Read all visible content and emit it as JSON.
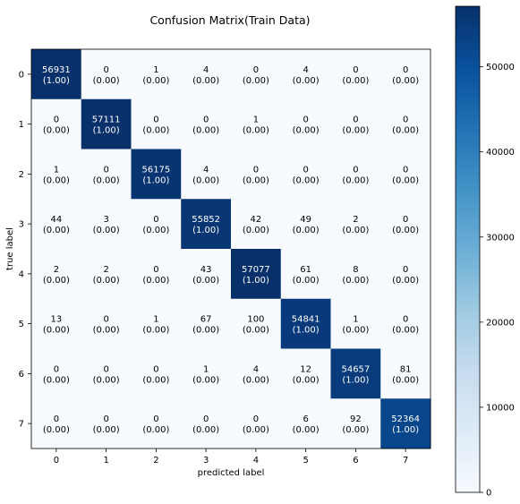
{
  "chart_data": {
    "type": "heatmap",
    "title": "Confusion Matrix(Train Data)",
    "xlabel": "predicted label",
    "ylabel": "true label",
    "x_ticks": [
      "0",
      "1",
      "2",
      "3",
      "4",
      "5",
      "6",
      "7"
    ],
    "y_ticks": [
      "0",
      "1",
      "2",
      "3",
      "4",
      "5",
      "6",
      "7"
    ],
    "matrix": [
      [
        56931,
        0,
        1,
        4,
        0,
        4,
        0,
        0
      ],
      [
        0,
        57111,
        0,
        0,
        1,
        0,
        0,
        0
      ],
      [
        1,
        0,
        56175,
        4,
        0,
        0,
        0,
        0
      ],
      [
        44,
        3,
        0,
        55852,
        42,
        49,
        2,
        0
      ],
      [
        2,
        2,
        0,
        43,
        57077,
        61,
        8,
        0
      ],
      [
        13,
        0,
        1,
        67,
        100,
        54841,
        1,
        0
      ],
      [
        0,
        0,
        0,
        1,
        4,
        12,
        54657,
        81
      ],
      [
        0,
        0,
        0,
        0,
        0,
        6,
        92,
        52364
      ]
    ],
    "normalized": [
      [
        "1.00",
        "0.00",
        "0.00",
        "0.00",
        "0.00",
        "0.00",
        "0.00",
        "0.00"
      ],
      [
        "0.00",
        "1.00",
        "0.00",
        "0.00",
        "0.00",
        "0.00",
        "0.00",
        "0.00"
      ],
      [
        "0.00",
        "0.00",
        "1.00",
        "0.00",
        "0.00",
        "0.00",
        "0.00",
        "0.00"
      ],
      [
        "0.00",
        "0.00",
        "0.00",
        "1.00",
        "0.00",
        "0.00",
        "0.00",
        "0.00"
      ],
      [
        "0.00",
        "0.00",
        "0.00",
        "0.00",
        "1.00",
        "0.00",
        "0.00",
        "0.00"
      ],
      [
        "0.00",
        "0.00",
        "0.00",
        "0.00",
        "0.00",
        "1.00",
        "0.00",
        "0.00"
      ],
      [
        "0.00",
        "0.00",
        "0.00",
        "0.00",
        "0.00",
        "0.00",
        "1.00",
        "0.00"
      ],
      [
        "0.00",
        "0.00",
        "0.00",
        "0.00",
        "0.00",
        "0.00",
        "0.00",
        "1.00"
      ]
    ],
    "colorbar": {
      "min": 0,
      "max": 57111,
      "ticks": [
        0,
        10000,
        20000,
        30000,
        40000,
        50000
      ],
      "colormap": "Blues",
      "low_color": "#f7fbff",
      "high_color": "#08306b"
    }
  }
}
